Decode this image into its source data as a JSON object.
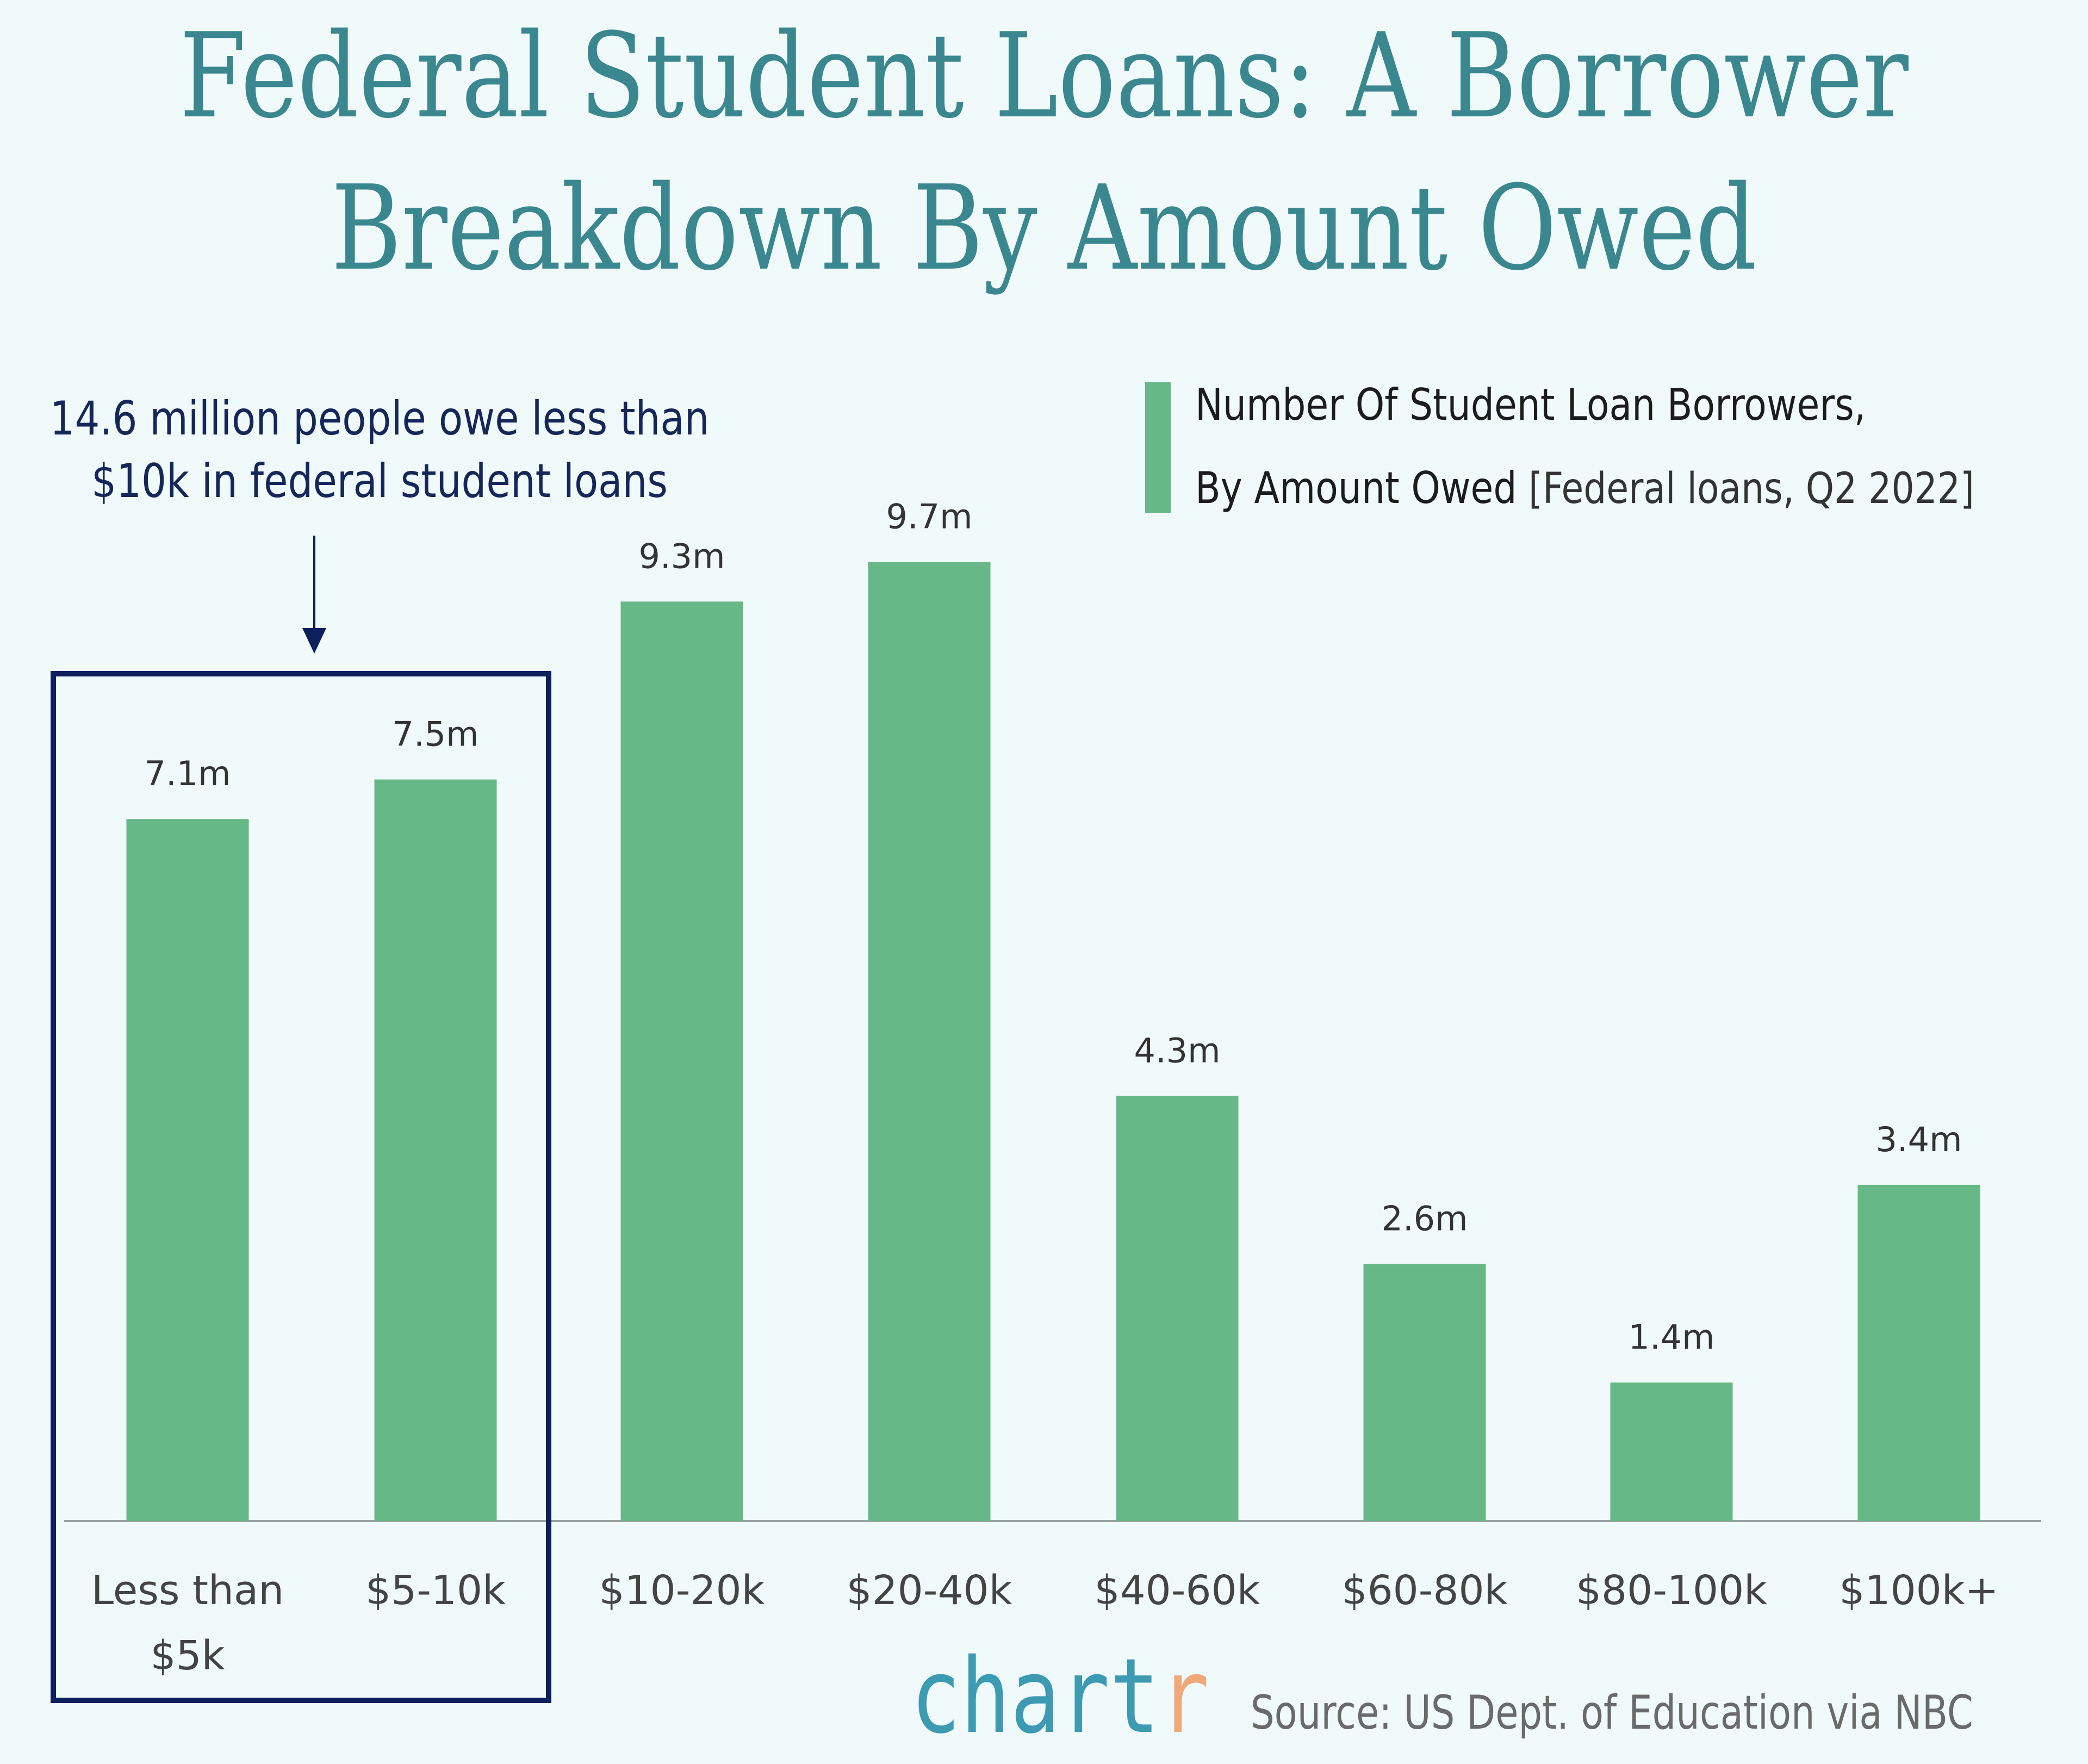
{
  "title_lines": [
    "Federal Student Loans: A Borrower",
    "Breakdown By Amount Owed"
  ],
  "annotation": {
    "lines": [
      "14.6 million people owe less than",
      "$10k in federal student loans"
    ],
    "highlighted_categories": [
      "Less than $5k",
      "$5-10k"
    ],
    "color": "#0d1f5c"
  },
  "legend": {
    "label_line1": "Number Of Student Loan Borrowers,",
    "label_line2_main": "By Amount Owed",
    "label_line2_sub": "[Federal loans, Q2 2022]",
    "placement": "top-right"
  },
  "chart_data": {
    "type": "bar",
    "title": "Federal Student Loans: A Borrower Breakdown By Amount Owed",
    "categories": [
      [
        "Less than",
        "$5k"
      ],
      [
        "$5-10k"
      ],
      [
        "$10-20k"
      ],
      [
        "$20-40k"
      ],
      [
        "$40-60k"
      ],
      [
        "$60-80k"
      ],
      [
        "$80-100k"
      ],
      [
        "$100k+"
      ]
    ],
    "values": [
      7.1,
      7.5,
      9.3,
      9.7,
      4.3,
      2.6,
      1.4,
      3.4
    ],
    "data_labels": [
      "7.1m",
      "7.5m",
      "9.3m",
      "9.7m",
      "4.3m",
      "2.6m",
      "1.4m",
      "3.4m"
    ],
    "unit": "million borrowers",
    "ylim": [
      0,
      9.7
    ],
    "grid": false,
    "xlabel": "",
    "ylabel": "",
    "bar_color": "#67b887"
  },
  "footer": {
    "logo_main": "chart",
    "logo_accent": "r",
    "source": "Source: US Dept. of Education via NBC"
  },
  "colors": {
    "background": "#f1fafa",
    "title": "#3b8790",
    "bar": "#67b887",
    "highlight_box": "#0d1f5c"
  }
}
